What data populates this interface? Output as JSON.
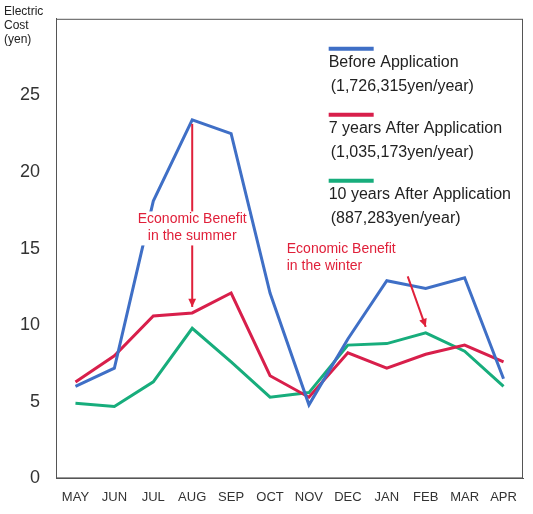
{
  "chart_data": {
    "type": "line",
    "y_label": "Electric\nCost\n(yen)",
    "categories": [
      "MAY",
      "JUN",
      "JUL",
      "AUG",
      "SEP",
      "OCT",
      "NOV",
      "DEC",
      "JAN",
      "FEB",
      "MAR",
      "APR"
    ],
    "series": [
      {
        "name": "Before Application\n(1,726,315yen/year)",
        "color": "#3f6fc6",
        "values": [
          6.0,
          7.2,
          18.1,
          23.4,
          22.5,
          12.1,
          4.8,
          9.1,
          12.9,
          12.4,
          13.1,
          6.5
        ]
      },
      {
        "name": "7 years After Application\n(1,035,173yen/year)",
        "color": "#d81f4b",
        "values": [
          6.3,
          8.0,
          10.6,
          10.8,
          12.1,
          6.7,
          5.3,
          8.2,
          7.2,
          8.1,
          8.7,
          7.6
        ]
      },
      {
        "name": "10 years After Application\n(887,283yen/year)",
        "color": "#17ad7c",
        "values": [
          4.9,
          4.7,
          6.3,
          9.8,
          7.6,
          5.3,
          5.6,
          8.7,
          8.8,
          9.5,
          8.3,
          6.0
        ]
      }
    ],
    "ylim": [
      0,
      30
    ],
    "yticks": [
      0,
      5,
      10,
      15,
      20,
      25
    ],
    "grid": false,
    "legend": "upper right",
    "marker": "none",
    "annotations": [
      {
        "text": "Economic Benefit\nin the summer",
        "category": "AUG"
      },
      {
        "text": "Economic Benefit\nin the winter",
        "category": "FEB"
      }
    ]
  }
}
